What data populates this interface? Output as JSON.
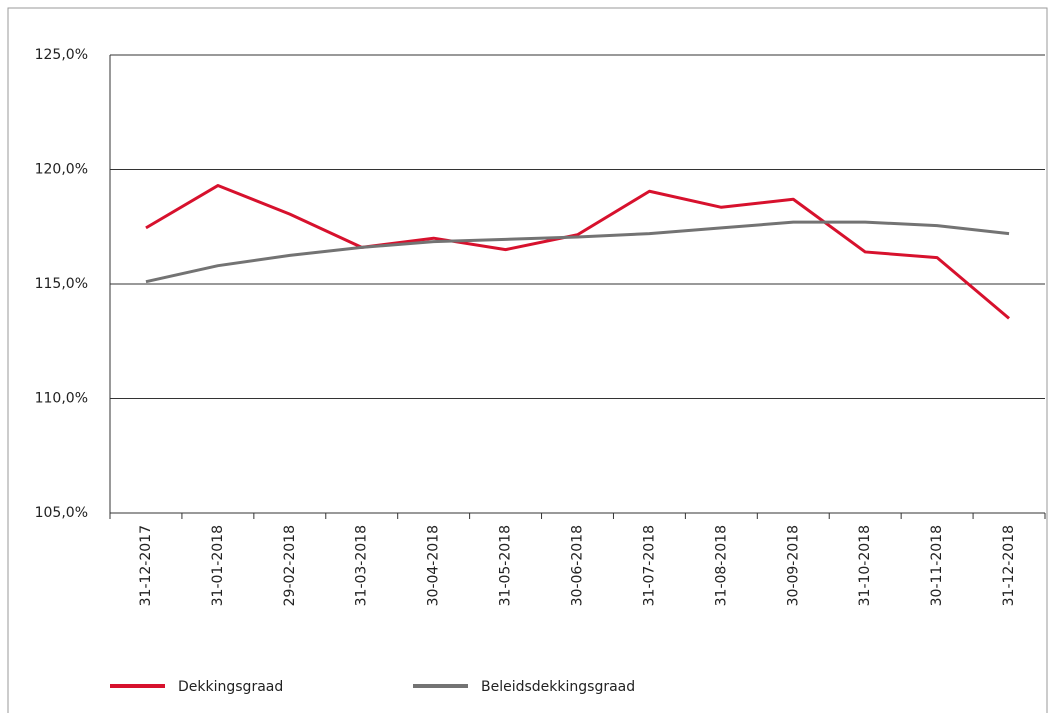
{
  "chart_data": {
    "type": "line",
    "categories": [
      "31-12-2017",
      "31-01-2018",
      "29-02-2018",
      "31-03-2018",
      "30-04-2018",
      "31-05-2018",
      "30-06-2018",
      "31-07-2018",
      "31-08-2018",
      "30-09-2018",
      "31-10-2018",
      "30-11-2018",
      "31-12-2018"
    ],
    "series": [
      {
        "name": "Dekkingsgraad",
        "color": "#d7112d",
        "values": [
          117.45,
          119.3,
          118.05,
          116.6,
          117.0,
          116.5,
          117.15,
          119.05,
          118.35,
          118.7,
          116.4,
          116.15,
          113.5
        ]
      },
      {
        "name": "Beleidsdekkingsgraad",
        "color": "#737373",
        "values": [
          115.1,
          115.8,
          116.25,
          116.6,
          116.85,
          116.95,
          117.05,
          117.2,
          117.45,
          117.7,
          117.7,
          117.55,
          117.2
        ]
      }
    ],
    "ylim": [
      105,
      125
    ],
    "yticks": [
      {
        "value": 105,
        "label": "105,0%"
      },
      {
        "value": 110,
        "label": "110,0%"
      },
      {
        "value": 115,
        "label": "115,0%"
      },
      {
        "value": 120,
        "label": "120,0%"
      },
      {
        "value": 125,
        "label": "125,0%"
      }
    ],
    "grid": true,
    "legend": "bottom"
  }
}
